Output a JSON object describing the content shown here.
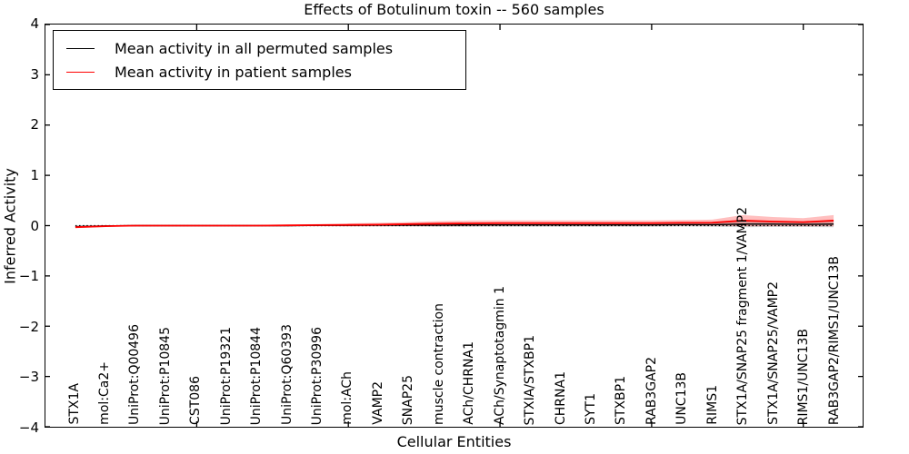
{
  "window": {
    "title": "Effects of Botulinum toxin -- 560 samples"
  },
  "chart_data": {
    "type": "line",
    "title": "Effects of Botulinum toxin -- 560 samples",
    "xlabel": "Cellular Entities",
    "ylabel": "Inferred Activity",
    "ylim": [
      -4,
      4
    ],
    "ytick_values": [
      4,
      3,
      2,
      1,
      0,
      -1,
      -2,
      -3,
      -4
    ],
    "ytick_labels": [
      "4",
      "3",
      "2",
      "1",
      "0",
      "−1",
      "−2",
      "−3",
      "−4"
    ],
    "xtick_category_numbers": [
      5,
      10,
      15,
      20,
      25
    ],
    "grid": false,
    "legend_position": "upper left",
    "zero_reference_line": {
      "y": 0,
      "style": "dotted",
      "color": "#000000"
    },
    "categories": [
      "STX1A",
      "mol:Ca2+",
      "UniProt:Q00496",
      "UniProt:P10845",
      "CST086",
      "UniProt:P19321",
      "UniProt:P10844",
      "UniProt:Q60393",
      "UniProt:P30996",
      "mol:ACh",
      "VAMP2",
      "SNAP25",
      "muscle contraction",
      "ACh/CHRNA1",
      "ACh/Synaptotagmin 1",
      "STXIA/STXBP1",
      "CHRNA1",
      "SYT1",
      "STXBP1",
      "RAB3GAP2",
      "UNC13B",
      "RIMS1",
      "STX1A/SNAP25 fragment 1/VAMP2",
      "STX1A/SNAP25/VAMP2",
      "RIMS1/UNC13B",
      "RAB3GAP2/RIMS1/UNC13B"
    ],
    "series": [
      {
        "name": "Mean activity in all permuted samples",
        "color": "#000000",
        "band_color": "rgba(128,128,128,0.35)",
        "values": [
          -0.02,
          -0.005,
          0,
          0,
          0,
          0,
          0,
          0,
          0.005,
          0.005,
          0.01,
          0.01,
          0.01,
          0.015,
          0.015,
          0.015,
          0.015,
          0.015,
          0.015,
          0.015,
          0.02,
          0.02,
          0.03,
          0.03,
          0.025,
          0.03
        ],
        "band_halfwidth": [
          0.015,
          0.01,
          0.01,
          0.01,
          0.01,
          0.01,
          0.01,
          0.012,
          0.015,
          0.02,
          0.022,
          0.025,
          0.03,
          0.035,
          0.035,
          0.035,
          0.035,
          0.035,
          0.035,
          0.035,
          0.035,
          0.04,
          0.06,
          0.055,
          0.05,
          0.06
        ]
      },
      {
        "name": "Mean activity in patient samples",
        "color": "#ff0000",
        "band_color": "rgba(255,0,0,0.25)",
        "values": [
          -0.03,
          -0.01,
          0,
          0,
          0,
          0,
          0,
          0.005,
          0.01,
          0.015,
          0.02,
          0.03,
          0.04,
          0.045,
          0.05,
          0.05,
          0.05,
          0.05,
          0.05,
          0.05,
          0.055,
          0.06,
          0.1,
          0.08,
          0.07,
          0.1
        ],
        "band_halfwidth": [
          0.02,
          0.015,
          0.01,
          0.01,
          0.01,
          0.01,
          0.01,
          0.015,
          0.02,
          0.03,
          0.035,
          0.04,
          0.05,
          0.055,
          0.055,
          0.055,
          0.055,
          0.055,
          0.055,
          0.055,
          0.055,
          0.06,
          0.11,
          0.09,
          0.08,
          0.11
        ]
      }
    ]
  }
}
